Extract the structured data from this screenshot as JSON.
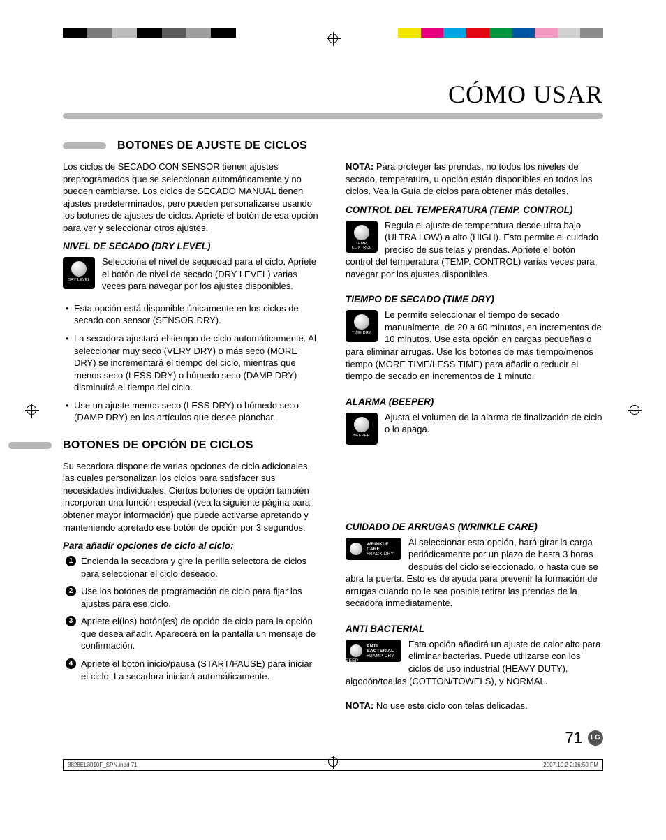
{
  "colorbar_left": [
    "#000000",
    "#7a7a7a",
    "#bcbcbc",
    "#000000",
    "#5a5a5a",
    "#9e9e9e",
    "#000000"
  ],
  "colorbar_right": [
    "#f2e600",
    "#e6007e",
    "#00a5e3",
    "#e30613",
    "#009640",
    "#0055a4",
    "#f49ac1",
    "#d1d1d1",
    "#8c8c8c"
  ],
  "page": {
    "title": "CÓMO USAR",
    "number": "71",
    "logo": "LG"
  },
  "footer": {
    "left": "3828EL3010F_SPN.indd   71",
    "right": "2007.10.2   2:16:50 PM"
  },
  "sec1": {
    "heading": "BOTONES DE AJUSTE DE CICLOS",
    "intro": "Los ciclos de SECADO CON SENSOR tienen ajustes preprogramados que se seleccionan automáticamente y no pueden cambiarse. Los ciclos de SECADO MANUAL tienen ajustes predeterminados, pero pueden personalizarse usando los botones de ajustes de ciclos. Apriete el botón de esa opción para ver y seleccionar otros ajustes.",
    "dry_level": {
      "title": "NIVEL DE SECADO (DRY LEVEL)",
      "icon": "DRY LEVEL",
      "body": "Selecciona el nivel de sequedad para el ciclo. Apriete el botón de nivel de secado (DRY LEVEL) varias veces para navegar por los ajustes disponibles.",
      "bullets": [
        "Esta opción está disponible únicamente en los ciclos de secado con sensor (SENSOR DRY).",
        "La secadora ajustará el tiempo de ciclo automáticamente. Al seleccionar muy seco (VERY DRY) o más seco (MORE DRY) se incrementará el tiempo del ciclo, mientras que menos seco (LESS DRY) o húmedo seco (DAMP DRY) disminuirá el tiempo del ciclo.",
        "Use un ajuste menos seco (LESS DRY) o húmedo seco (DAMP DRY) en los artículos que desee planchar."
      ]
    },
    "nota_label": "NOTA:",
    "nota": " Para proteger las prendas, no todos los niveles de secado, temperatura, u opción están disponibles en todos los ciclos. Vea la Guía de ciclos para obtener más detalles.",
    "temp": {
      "title": "CONTROL DEL TEMPERATURA (TEMP. CONTROL)",
      "icon": "TEMP. CONTROL",
      "body": "Regula el ajuste de temperatura desde ultra bajo (ULTRA LOW) a alto (HIGH). Esto permite el cuidado preciso de sus telas y prendas. Apriete el botón control del temperatura (TEMP. CONTROL) varias veces para navegar por los ajustes disponibles."
    },
    "time": {
      "title": "TIEMPO DE SECADO (TIME DRY)",
      "icon": "TIME DRY",
      "body": "Le permite seleccionar el tiempo de secado manualmente, de 20 a 60 minutos, en incrementos de 10 minutos. Use esta opción en cargas pequeñas o para eliminar arrugas. Use los botones de mas tiempo/menos tiempo (MORE TIME/LESS TIME) para añadir o reducir el tiempo de secado en incrementos de 1 minuto."
    },
    "beeper": {
      "title": "ALARMA (BEEPER)",
      "icon": "BEEPER",
      "body": "Ajusta el volumen de la alarma de finalización de ciclo o lo apaga."
    }
  },
  "sec2": {
    "heading": "BOTONES DE OPCIÓN DE CICLOS",
    "intro": "Su secadora dispone de varias opciones de ciclo adicionales, las cuales personalizan los ciclos para satisfacer sus necesidades individuales. Ciertos botones de opción también incorporan una función especial (vea la siguiente página para obtener mayor información) que puede activarse apretando y manteniendo apretado ese botón de opción por 3 segundos.",
    "steps_title": "Para añadir opciones de ciclo al ciclo:",
    "steps": [
      "Encienda la secadora y gire la perilla selectora de ciclos para seleccionar el ciclo deseado.",
      "Use los botones de programación de ciclo para fijar los ajustes para ese ciclo.",
      "Apriete el(los) botón(es) de opción de ciclo para la opción que desea añadir. Aparecerá en la pantalla un mensaje de confirmación.",
      "Apriete el botón inicio/pausa (START/PAUSE) para iniciar el ciclo. La secadora iniciará automáticamente."
    ],
    "wrinkle": {
      "title": "CUIDADO DE ARRUGAS (WRINKLE CARE)",
      "icon1": "WRINKLE CARE",
      "icon2": "+RACK DRY",
      "body": "Al seleccionar esta opción, hará girar la carga periódicamente por un plazo de hasta 3 horas después del ciclo seleccionado, o hasta que se abra la puerta. Esto es de ayuda para prevenir la formación de arrugas cuando no le sea posible retirar las prendas de la secadora inmediatamente."
    },
    "anti": {
      "title": "ANTI BACTERIAL",
      "icon1": "ANTI BACTERIAL",
      "icon2": "+DAMP DRY BEEP",
      "body": "Esta opción añadirá un ajuste de calor alto para eliminar bacterias. Puede utilizarse con los ciclos de uso industrial (HEAVY DUTY), algodón/toallas (COTTON/TOWELS), y NORMAL.",
      "nota_label": "NOTA:",
      "nota": " No use este ciclo con telas delicadas."
    }
  }
}
